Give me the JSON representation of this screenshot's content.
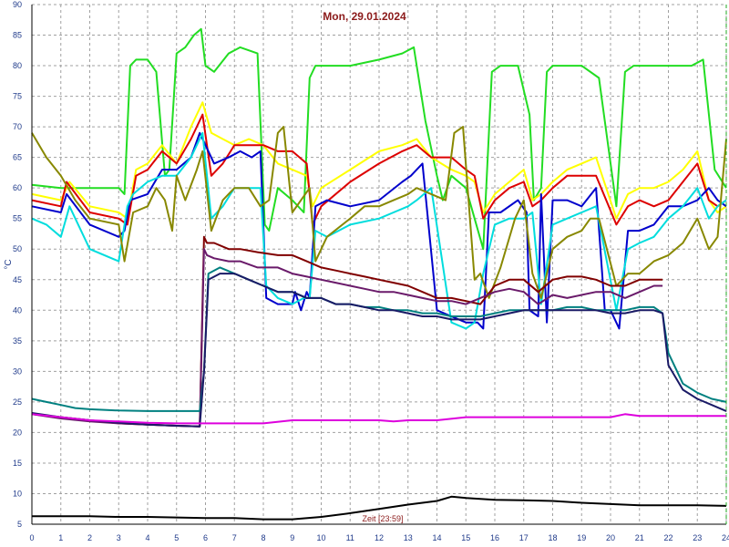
{
  "chart_data": {
    "type": "line",
    "title": "Mon, 29.01.2024",
    "xlabel": "Zeit [23:59]",
    "ylabel": "°C",
    "xlim": [
      0,
      24
    ],
    "ylim": [
      5,
      90
    ],
    "x_ticks": [
      "0",
      "1",
      "2",
      "3",
      "4",
      "5",
      "6",
      "7",
      "8",
      "9",
      "10",
      "11",
      "12",
      "13",
      "14",
      "15",
      "16",
      "17",
      "18",
      "19",
      "20",
      "21",
      "22",
      "23",
      "24"
    ],
    "y_ticks": [
      "5",
      "10",
      "15",
      "20",
      "25",
      "30",
      "35",
      "40",
      "45",
      "50",
      "55",
      "60",
      "65",
      "70",
      "75",
      "80",
      "85",
      "90"
    ],
    "grid": true,
    "series": [
      {
        "color": "#22dd22",
        "x": [
          0,
          1,
          2,
          3,
          3.2,
          3.4,
          3.6,
          4,
          4.3,
          4.6,
          4.75,
          5,
          5.3,
          5.6,
          5.85,
          6,
          6.3,
          6.8,
          7.2,
          7.8,
          8.05,
          8.2,
          8.5,
          9,
          9.4,
          9.6,
          9.8,
          10,
          11,
          12,
          12.8,
          13.2,
          13.6,
          14,
          14.2,
          14.5,
          15,
          15.3,
          15.6,
          15.9,
          16.2,
          16.8,
          17.2,
          17.35,
          17.6,
          17.8,
          18,
          18.4,
          19,
          19.6,
          20.2,
          20.5,
          20.8,
          21.2,
          22,
          22.4,
          22.8,
          23.2,
          23.6,
          24
        ],
        "y": [
          60.5,
          60,
          60,
          60,
          59,
          80,
          81,
          81,
          79,
          62,
          63,
          82,
          83,
          85,
          86,
          80,
          79,
          82,
          83,
          82,
          54,
          53,
          60,
          58,
          56,
          78,
          80,
          80,
          80,
          81,
          82,
          83,
          71,
          62,
          58,
          62,
          60,
          55,
          50,
          79,
          80,
          80,
          72,
          58,
          60,
          79,
          80,
          80,
          80,
          78,
          57,
          79,
          80,
          80,
          80,
          80,
          80,
          81,
          63,
          60
        ]
      },
      {
        "color": "#ffff00",
        "x": [
          0,
          1,
          1.3,
          2,
          3,
          3.3,
          3.6,
          4,
          4.5,
          5,
          5.5,
          5.9,
          6.2,
          6.6,
          7,
          7.5,
          8,
          8.5,
          9,
          9.5,
          9.7,
          10,
          11,
          12,
          12.8,
          13.3,
          13.8,
          14.5,
          15,
          15.3,
          15.6,
          16,
          16.5,
          17,
          17.3,
          17.6,
          18,
          18.5,
          19,
          19.5,
          20.2,
          20.6,
          21,
          21.5,
          22,
          22.5,
          23,
          23.4,
          23.7,
          24
        ],
        "y": [
          59,
          58,
          61,
          57,
          56,
          55,
          63,
          64,
          67,
          64,
          70,
          74,
          69,
          68,
          67,
          68,
          67,
          64,
          63,
          62,
          57,
          60,
          63,
          66,
          67,
          68,
          65,
          63,
          62,
          61,
          56,
          59,
          61,
          63,
          58,
          59,
          61,
          63,
          64,
          65,
          55,
          59,
          60,
          60,
          61,
          63,
          66,
          58,
          56,
          57
        ]
      },
      {
        "color": "#dd0000",
        "x": [
          0,
          1,
          1.2,
          2,
          3,
          3.3,
          3.6,
          4,
          4.5,
          5,
          5.5,
          5.9,
          6.2,
          6.6,
          7,
          7.5,
          8,
          8.5,
          9,
          9.5,
          9.7,
          10,
          11,
          12,
          12.8,
          13.3,
          13.8,
          14.5,
          15,
          15.3,
          15.6,
          16,
          16.5,
          17,
          17.3,
          17.6,
          18,
          18.5,
          19,
          19.5,
          20.2,
          20.6,
          21,
          21.5,
          22,
          22.5,
          23,
          23.4,
          23.7,
          24
        ],
        "y": [
          58,
          57,
          61,
          56,
          55,
          54,
          62,
          63,
          66,
          64,
          68,
          72,
          62,
          64,
          67,
          67,
          67,
          66,
          66,
          64,
          54,
          57,
          61,
          64,
          66,
          67,
          65,
          65,
          63,
          62,
          55,
          58,
          60,
          61,
          57,
          58,
          60,
          62,
          62,
          62,
          54,
          57,
          58,
          57,
          58,
          61,
          64,
          58,
          57,
          58
        ]
      },
      {
        "color": "#0000cc",
        "x": [
          0,
          1,
          1.2,
          2,
          3,
          3.2,
          3.4,
          4,
          4.5,
          5,
          5.5,
          5.8,
          6,
          6.3,
          6.8,
          7.2,
          7.6,
          7.9,
          8.1,
          8.5,
          9,
          9.1,
          9.3,
          9.5,
          9.6,
          9.8,
          10.2,
          11,
          12,
          12.8,
          13.1,
          13.3,
          13.5,
          14,
          14.5,
          15,
          15.4,
          15.6,
          15.8,
          16.2,
          16.8,
          17.1,
          17.2,
          17.5,
          17.6,
          17.8,
          18,
          18.5,
          19,
          19.5,
          19.8,
          20,
          20.3,
          20.6,
          21,
          21.5,
          22,
          22.5,
          23,
          23.4,
          23.7,
          24
        ],
        "y": [
          57,
          56,
          59,
          54,
          52,
          53,
          58,
          59,
          63,
          63,
          65,
          69,
          67,
          64,
          65,
          66,
          65,
          66,
          42,
          41,
          41,
          43,
          40,
          43,
          42,
          57,
          58,
          57,
          58,
          61,
          62,
          63,
          64,
          40,
          39,
          38,
          38,
          37,
          56,
          56,
          58,
          56,
          40,
          39,
          59,
          38,
          58,
          58,
          57,
          60,
          40,
          40,
          37,
          53,
          53,
          54,
          57,
          57,
          58,
          60,
          58,
          57
        ]
      },
      {
        "color": "#00dddd",
        "x": [
          0,
          0.5,
          1,
          1.3,
          2,
          3,
          3.3,
          3.5,
          4,
          4.5,
          5,
          5.5,
          5.9,
          6.2,
          6.6,
          7,
          7.5,
          7.9,
          8.1,
          8.5,
          9,
          9.4,
          9.6,
          9.8,
          10.2,
          11,
          12,
          12.5,
          13,
          13.3,
          13.8,
          14.5,
          15,
          15.3,
          15.6,
          16,
          16.5,
          17,
          17.3,
          17.6,
          18,
          18.5,
          19,
          19.5,
          20.2,
          20.6,
          21,
          21.5,
          22,
          22.5,
          23,
          23.4,
          23.7,
          24
        ],
        "y": [
          55,
          54,
          52,
          57,
          50,
          48,
          57,
          59,
          61,
          62,
          62,
          65,
          69,
          55,
          57,
          60,
          60,
          60,
          44,
          42,
          41,
          42,
          42,
          53,
          52,
          54,
          55,
          56,
          57,
          58,
          60,
          38,
          37,
          38,
          46,
          54,
          55,
          55,
          56,
          41,
          54,
          55,
          56,
          57,
          40,
          50,
          51,
          52,
          55,
          57,
          60,
          55,
          57,
          58
        ]
      },
      {
        "color": "#888800",
        "x": [
          0,
          0.5,
          1,
          1.5,
          2,
          3,
          3.2,
          3.5,
          4,
          4.3,
          4.6,
          4.85,
          5,
          5.3,
          5.7,
          5.9,
          6.2,
          6.6,
          7,
          7.5,
          7.9,
          8.2,
          8.5,
          8.7,
          9,
          9.3,
          9.6,
          9.8,
          10.2,
          11,
          11.5,
          12,
          12.5,
          13,
          13.3,
          13.8,
          14.3,
          14.6,
          14.9,
          15.3,
          15.5,
          15.8,
          16.2,
          16.7,
          17,
          17.3,
          17.6,
          18,
          18.5,
          19,
          19.3,
          19.6,
          20.2,
          20.6,
          21,
          21.5,
          22,
          22.5,
          23,
          23.4,
          23.7,
          24
        ],
        "y": [
          69,
          65,
          62,
          58,
          55,
          54,
          48,
          56,
          57,
          60,
          58,
          53,
          62,
          58,
          63,
          66,
          53,
          58,
          60,
          60,
          57,
          58,
          69,
          70,
          56,
          58,
          60,
          48,
          52,
          55,
          57,
          57,
          58,
          59,
          60,
          59,
          58,
          69,
          70,
          45,
          46,
          42,
          47,
          55,
          58,
          46,
          42,
          50,
          52,
          53,
          55,
          55,
          44,
          46,
          46,
          48,
          49,
          51,
          55,
          50,
          52,
          68
        ]
      },
      {
        "color": "#800000",
        "x": [
          0,
          1,
          2,
          3,
          4,
          5,
          5.8,
          5.95,
          6.05,
          6.3,
          6.8,
          7.2,
          7.8,
          8.5,
          9,
          9.5,
          10,
          10.5,
          11,
          11.5,
          12,
          12.5,
          13,
          13.5,
          14,
          14.5,
          15,
          15.5,
          16,
          16.5,
          17,
          17.5,
          18,
          18.5,
          19,
          19.5,
          20,
          20.5,
          21,
          21.5,
          21.8
        ],
        "y": [
          23,
          22.5,
          22,
          21.5,
          21.3,
          21.1,
          21,
          52,
          51,
          51,
          50,
          50,
          49.5,
          49,
          49,
          48,
          47,
          46.5,
          46,
          45.5,
          45,
          44.5,
          44,
          43,
          42,
          42,
          41.5,
          41,
          44,
          45,
          45,
          43,
          45,
          45.5,
          45.5,
          45,
          44,
          44,
          45,
          45,
          45
        ]
      },
      {
        "color": "#6a1a6a",
        "x": [
          0,
          1,
          2,
          3,
          4,
          5,
          5.8,
          5.95,
          6.05,
          6.3,
          6.8,
          7.2,
          7.8,
          8.5,
          9,
          9.5,
          10,
          10.5,
          11,
          11.5,
          12,
          12.5,
          13,
          13.5,
          14,
          14.5,
          15,
          15.5,
          16,
          16.5,
          17,
          17.5,
          18,
          18.5,
          19,
          19.5,
          20,
          20.5,
          21,
          21.5,
          21.8
        ],
        "y": [
          23,
          22.3,
          21.8,
          21.5,
          21.3,
          21.1,
          21,
          50,
          49,
          48.5,
          48,
          48,
          47,
          47,
          46,
          45.5,
          45,
          44.5,
          44,
          43.5,
          43,
          43,
          42.5,
          42,
          41.5,
          41.5,
          41,
          42,
          43,
          43.5,
          43,
          41,
          42.5,
          42,
          42.5,
          43,
          43,
          42,
          43,
          44,
          44
        ]
      },
      {
        "color": "#008080",
        "x": [
          0,
          0.5,
          1,
          1.5,
          2,
          3,
          4,
          5,
          5.8,
          5.95,
          6.1,
          6.5,
          7,
          7.5,
          8,
          8.5,
          9,
          9.5,
          10,
          10.5,
          11,
          11.5,
          12,
          12.5,
          13,
          13.5,
          14,
          14.5,
          15,
          15.5,
          16,
          16.5,
          17,
          17.5,
          18,
          18.5,
          19,
          19.5,
          20,
          20.5,
          21,
          21.5,
          21.8,
          22,
          22.5,
          23,
          23.5,
          24
        ],
        "y": [
          25.5,
          25,
          24.5,
          24,
          23.8,
          23.6,
          23.5,
          23.5,
          23.5,
          30,
          46,
          47,
          46,
          45,
          44,
          43,
          43,
          42,
          42,
          41,
          41,
          40.5,
          40.5,
          40,
          40,
          39.5,
          39.5,
          39,
          39,
          39,
          39.5,
          40,
          40,
          40,
          40,
          40.5,
          40.5,
          40,
          40,
          40,
          40.5,
          40.5,
          39.5,
          33,
          28,
          26.5,
          25.5,
          25
        ]
      },
      {
        "color": "#1a1a66",
        "x": [
          0,
          1,
          2,
          3,
          4,
          5,
          5.8,
          5.95,
          6.1,
          6.5,
          7,
          7.5,
          8,
          8.5,
          9,
          9.5,
          10,
          10.5,
          11,
          11.5,
          12,
          12.5,
          13,
          13.5,
          14,
          14.5,
          15,
          15.5,
          16,
          16.5,
          17,
          17.5,
          18,
          18.5,
          19,
          19.5,
          20,
          20.5,
          21,
          21.5,
          21.8,
          22,
          22.5,
          23,
          23.5,
          24
        ],
        "y": [
          23.2,
          22.5,
          22,
          21.6,
          21.3,
          21.1,
          21,
          30,
          45,
          46,
          46,
          45,
          44,
          43,
          43,
          42,
          42,
          41,
          41,
          40.5,
          40,
          40,
          39.5,
          39,
          39,
          38.5,
          38.5,
          38.5,
          39,
          39.5,
          40,
          40,
          40,
          40,
          40,
          40,
          39.5,
          39.5,
          40,
          40,
          39.5,
          31,
          27,
          25.5,
          24.5,
          23.5
        ]
      },
      {
        "color": "#dd00dd",
        "x": [
          0,
          1,
          2,
          3,
          4,
          5,
          5.8,
          6,
          7,
          8,
          9,
          10,
          11,
          12,
          12.5,
          13,
          14,
          15,
          16,
          17,
          18,
          19,
          20,
          20.5,
          21,
          22,
          23,
          24
        ],
        "y": [
          23,
          22.5,
          22,
          21.8,
          21.6,
          21.5,
          21.5,
          21.5,
          21.5,
          21.5,
          22,
          22,
          22,
          22,
          21.8,
          22,
          22,
          22.5,
          22.5,
          22.5,
          22.5,
          22.5,
          22.5,
          23,
          22.7,
          22.7,
          22.7,
          22.7
        ]
      },
      {
        "color": "#000000",
        "x": [
          0,
          1,
          2,
          3,
          4,
          5,
          6,
          7,
          8,
          9,
          10,
          11,
          12,
          13,
          14,
          14.5,
          15,
          16,
          17,
          18,
          19,
          20,
          21,
          22,
          23,
          24
        ],
        "y": [
          6.3,
          6.3,
          6.3,
          6.2,
          6.2,
          6.1,
          6,
          6,
          5.8,
          5.8,
          6.2,
          6.8,
          7.5,
          8.2,
          8.8,
          9.5,
          9.3,
          9,
          8.9,
          8.8,
          8.5,
          8.3,
          8.1,
          8.1,
          8.1,
          8
        ]
      }
    ]
  }
}
